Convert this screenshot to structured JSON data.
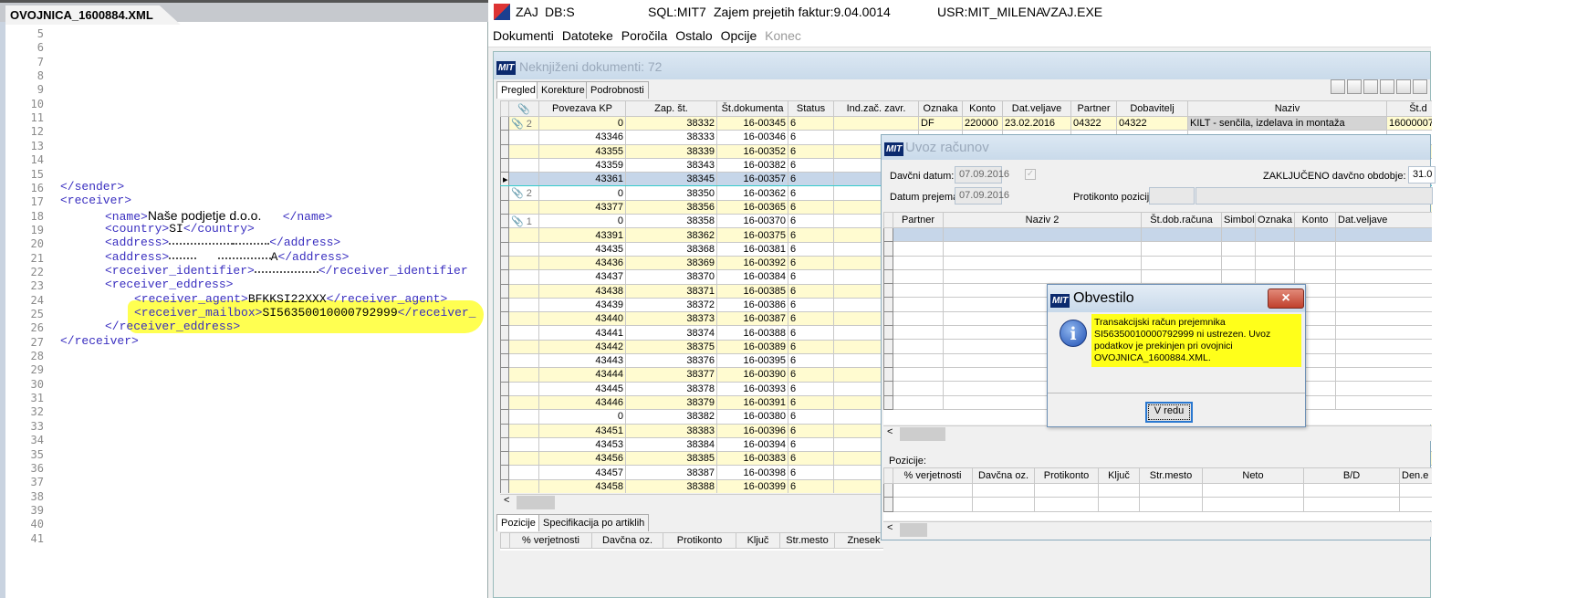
{
  "editor": {
    "tab_label": "OVOJNICA_1600884.XML",
    "line_numbers": [
      "5",
      "6",
      "7",
      "8",
      "9",
      "10",
      "11",
      "12",
      "13",
      "14",
      "15",
      "16",
      "17",
      "18",
      "19",
      "20",
      "21",
      "22",
      "23",
      "24",
      "25",
      "26",
      "27",
      "28",
      "29",
      "30",
      "31",
      "32",
      "33",
      "34",
      "35",
      "36",
      "37",
      "38",
      "39",
      "40",
      "41"
    ],
    "lines": {
      "l16": "</sender>",
      "l17": "<receiver>",
      "l18_open": "<name>",
      "l18_value": "Naše podjetje d.o.o.",
      "l18_close": "</name>",
      "l19_open": "<country>",
      "l19_value": "SI",
      "l19_close": "</country>",
      "l20_open": "<address>",
      "l20_close": "</address>",
      "l21_open": "<address>",
      "l21_value_tail": "A",
      "l21_close": "</address>",
      "l22_open": "<receiver_identifier>",
      "l22_close": "</receiver_identifier",
      "l23": "<receiver_eddress>",
      "l24_open": "<receiver_agent>",
      "l24_value": "BFKKSI22XXX",
      "l24_close": "</receiver_agent>",
      "l25_open": "<receiver_mailbox>",
      "l25_value": "SI56350010000792999",
      "l25_close": "</receiver_",
      "l26": "</receiver_eddress>",
      "l27": "</receiver>"
    },
    "highlight_color": "#ffff33"
  },
  "app": {
    "title": {
      "app": "ZAJ",
      "db": "DB:S",
      "sql": "SQL:MIT7",
      "module": "Zajem prejetih faktur:9.04.0014",
      "user": "USR:MIT_MILENA",
      "exe": "VZAJ.EXE"
    },
    "menu": [
      "Dokumenti",
      "Datoteke",
      "Poročila",
      "Ostalo",
      "Opcije",
      "Konec"
    ],
    "window": {
      "logo": "MIT",
      "title": "Neknjiženi dokumenti: 72",
      "tabs": [
        "Pregled",
        "Korekture",
        "Podrobnosti"
      ],
      "columns": [
        "Povezava KP",
        "Zap. št.",
        "Št.dokumenta",
        "Status",
        "Ind.zač. zavr.",
        "Oznaka",
        "Konto",
        "Dat.veljave",
        "Partner",
        "Dobavitelj",
        "Naziv",
        "Št.d"
      ],
      "first_row": {
        "oznaka": "DF",
        "konto": "220000",
        "dat_veljave": "23.02.2016",
        "partner": "04322",
        "dobavitelj": "04322",
        "naziv": "KILT - senčila, izdelava in montaža",
        "st_d": "16000007"
      },
      "rows": [
        {
          "clip": "2",
          "kp": "0",
          "zap": "38332",
          "dok": "16-00345",
          "status": "6"
        },
        {
          "clip": "",
          "kp": "43346",
          "zap": "38333",
          "dok": "16-00346",
          "status": "6"
        },
        {
          "clip": "",
          "kp": "43355",
          "zap": "38339",
          "dok": "16-00352",
          "status": "6"
        },
        {
          "clip": "",
          "kp": "43359",
          "zap": "38343",
          "dok": "16-00382",
          "status": "6"
        },
        {
          "clip": "",
          "kp": "43361",
          "zap": "38345",
          "dok": "16-00357",
          "status": "6"
        },
        {
          "clip": "2",
          "kp": "0",
          "zap": "38350",
          "dok": "16-00362",
          "status": "6"
        },
        {
          "clip": "",
          "kp": "43377",
          "zap": "38356",
          "dok": "16-00365",
          "status": "6"
        },
        {
          "clip": "1",
          "kp": "0",
          "zap": "38358",
          "dok": "16-00370",
          "status": "6"
        },
        {
          "clip": "",
          "kp": "43391",
          "zap": "38362",
          "dok": "16-00375",
          "status": "6"
        },
        {
          "clip": "",
          "kp": "43435",
          "zap": "38368",
          "dok": "16-00381",
          "status": "6"
        },
        {
          "clip": "",
          "kp": "43436",
          "zap": "38369",
          "dok": "16-00392",
          "status": "6"
        },
        {
          "clip": "",
          "kp": "43437",
          "zap": "38370",
          "dok": "16-00384",
          "status": "6"
        },
        {
          "clip": "",
          "kp": "43438",
          "zap": "38371",
          "dok": "16-00385",
          "status": "6"
        },
        {
          "clip": "",
          "kp": "43439",
          "zap": "38372",
          "dok": "16-00386",
          "status": "6"
        },
        {
          "clip": "",
          "kp": "43440",
          "zap": "38373",
          "dok": "16-00387",
          "status": "6"
        },
        {
          "clip": "",
          "kp": "43441",
          "zap": "38374",
          "dok": "16-00388",
          "status": "6"
        },
        {
          "clip": "",
          "kp": "43442",
          "zap": "38375",
          "dok": "16-00389",
          "status": "6"
        },
        {
          "clip": "",
          "kp": "43443",
          "zap": "38376",
          "dok": "16-00395",
          "status": "6"
        },
        {
          "clip": "",
          "kp": "43444",
          "zap": "38377",
          "dok": "16-00390",
          "status": "6"
        },
        {
          "clip": "",
          "kp": "43445",
          "zap": "38378",
          "dok": "16-00393",
          "status": "6"
        },
        {
          "clip": "",
          "kp": "43446",
          "zap": "38379",
          "dok": "16-00391",
          "status": "6"
        },
        {
          "clip": "",
          "kp": "0",
          "zap": "38382",
          "dok": "16-00380",
          "status": "6"
        },
        {
          "clip": "",
          "kp": "43451",
          "zap": "38383",
          "dok": "16-00396",
          "status": "6"
        },
        {
          "clip": "",
          "kp": "43453",
          "zap": "38384",
          "dok": "16-00394",
          "status": "6"
        },
        {
          "clip": "",
          "kp": "43456",
          "zap": "38385",
          "dok": "16-00383",
          "status": "6"
        },
        {
          "clip": "",
          "kp": "43457",
          "zap": "38387",
          "dok": "16-00398",
          "status": "6"
        },
        {
          "clip": "",
          "kp": "43458",
          "zap": "38388",
          "dok": "16-00399",
          "status": "6"
        }
      ],
      "selected_row": 4,
      "bottom_tabs": [
        "Pozicije",
        "Specifikacija po artiklih"
      ],
      "bottom_columns": [
        "% verjetnosti",
        "Davčna oz.",
        "Protikonto",
        "Ključ",
        "Str.mesto",
        "Znesek"
      ]
    },
    "uvoz": {
      "title": "Uvoz računov",
      "davcni_datum_label": "Davčni datum:",
      "davcni_datum": "07.09.2016",
      "datum_prejema_label": "Datum prejema:",
      "datum_prejema": "07.09.2016",
      "zakljuceno_label": "ZAKLJUČENO davčno obdobje:",
      "zakljuceno_value": "31.0",
      "protikonto_label": "Protikonto pozicij:",
      "columns": [
        "Partner",
        "Naziv 2",
        "Št.dob.računa",
        "Simbol",
        "Oznaka",
        "Konto",
        "Dat.veljave"
      ],
      "pozicije_label": "Pozicije:",
      "pozicije_columns": [
        "% verjetnosti",
        "Davčna oz.",
        "Protikonto",
        "Ključ",
        "Str.mesto",
        "Neto",
        "B/D",
        "Den.e"
      ]
    },
    "obvestilo": {
      "title": "Obvestilo",
      "message": "Transakcijski račun prejemnika SI56350010000792999 ni ustrezen. Uvoz podatkov je prekinjen pri ovojnici OVOJNICA_1600884.XML.",
      "ok_label": "V redu",
      "close_icon": "×"
    }
  }
}
